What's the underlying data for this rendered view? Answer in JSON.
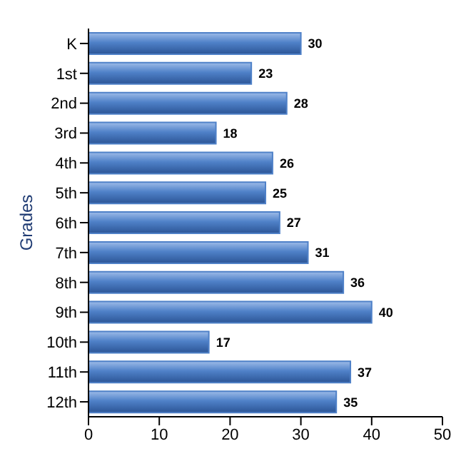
{
  "chart_data": {
    "type": "bar",
    "orientation": "horizontal",
    "ylabel": "Grades",
    "categories": [
      "K",
      "1st",
      "2nd",
      "3rd",
      "4th",
      "5th",
      "6th",
      "7th",
      "8th",
      "9th",
      "10th",
      "11th",
      "12th"
    ],
    "values": [
      30,
      23,
      28,
      18,
      26,
      25,
      27,
      31,
      36,
      40,
      17,
      37,
      35
    ],
    "color": "#4f81c8",
    "xlim": [
      0,
      50
    ],
    "xticks": [
      0,
      10,
      20,
      30,
      40,
      50
    ],
    "grid": false,
    "legend": false,
    "data_labels": true
  }
}
